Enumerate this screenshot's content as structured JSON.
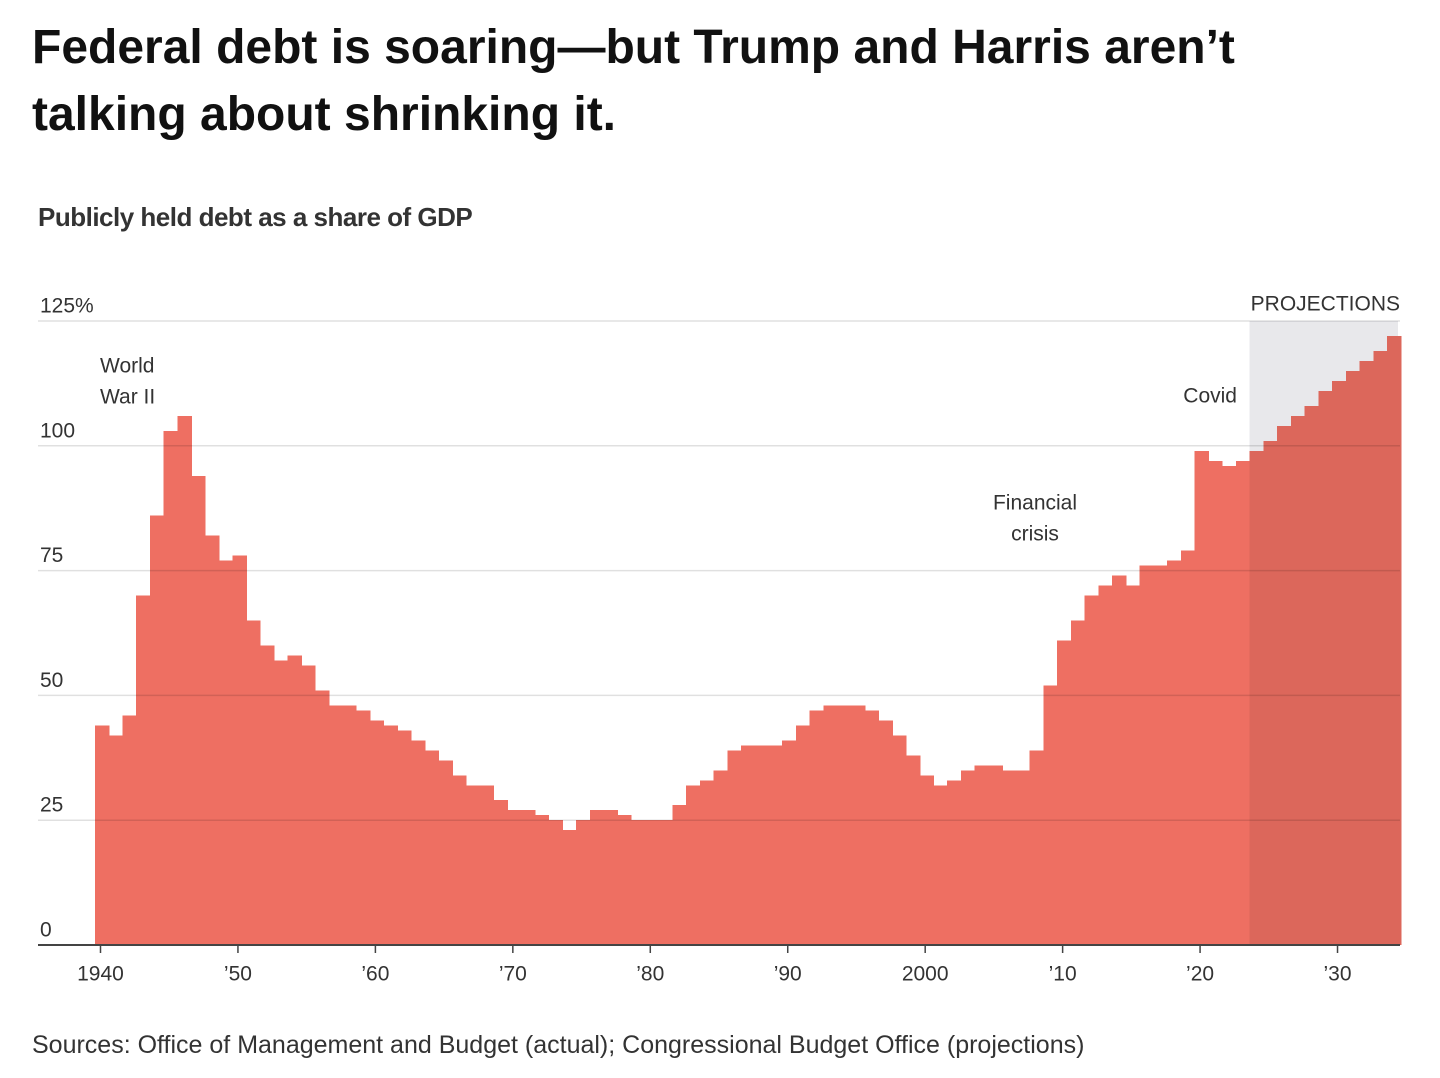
{
  "chart_data": {
    "type": "step-area",
    "title": "Federal debt is soaring—but Trump and Harris aren’t talking about shrinking it.",
    "subtitle": "Publicly held debt as a share of GDP",
    "source": "Sources: Office of Management and Budget (actual); Congressional Budget Office (projections)",
    "x": [
      1940,
      1941,
      1942,
      1943,
      1944,
      1945,
      1946,
      1947,
      1948,
      1949,
      1950,
      1951,
      1952,
      1953,
      1954,
      1955,
      1956,
      1957,
      1958,
      1959,
      1960,
      1961,
      1962,
      1963,
      1964,
      1965,
      1966,
      1967,
      1968,
      1969,
      1970,
      1971,
      1972,
      1973,
      1974,
      1975,
      1976,
      1977,
      1978,
      1979,
      1980,
      1981,
      1982,
      1983,
      1984,
      1985,
      1986,
      1987,
      1988,
      1989,
      1990,
      1991,
      1992,
      1993,
      1994,
      1995,
      1996,
      1997,
      1998,
      1999,
      2000,
      2001,
      2002,
      2003,
      2004,
      2005,
      2006,
      2007,
      2008,
      2009,
      2010,
      2011,
      2012,
      2013,
      2014,
      2015,
      2016,
      2017,
      2018,
      2019,
      2020,
      2021,
      2022,
      2023,
      2024,
      2025,
      2026,
      2027,
      2028,
      2029,
      2030,
      2031,
      2032,
      2033,
      2034
    ],
    "values": [
      44,
      42,
      46,
      70,
      86,
      103,
      106,
      94,
      82,
      77,
      78,
      65,
      60,
      57,
      58,
      56,
      51,
      48,
      48,
      47,
      45,
      44,
      43,
      41,
      39,
      37,
      34,
      32,
      32,
      29,
      27,
      27,
      26,
      25,
      23,
      25,
      27,
      27,
      26,
      25,
      25,
      25,
      28,
      32,
      33,
      35,
      39,
      40,
      40,
      40,
      41,
      44,
      47,
      48,
      48,
      48,
      47,
      45,
      42,
      38,
      34,
      32,
      33,
      35,
      36,
      36,
      35,
      35,
      39,
      52,
      61,
      65,
      70,
      72,
      74,
      72,
      76,
      76,
      77,
      79,
      99,
      97,
      96,
      97,
      99,
      101,
      104,
      106,
      108,
      111,
      113,
      115,
      117,
      119,
      122
    ],
    "color": "#ee6f62",
    "projection_color": "#dc675b",
    "projection_shade": "#e8e8eb",
    "projection_label": "PROJECTIONS",
    "projection_from": 2024,
    "xlim": [
      1939.6,
      2034.4
    ],
    "xticks": [
      {
        "value": 1940,
        "label": "1940"
      },
      {
        "value": 1950,
        "label": "’50"
      },
      {
        "value": 1960,
        "label": "’60"
      },
      {
        "value": 1970,
        "label": "’70"
      },
      {
        "value": 1980,
        "label": "’80"
      },
      {
        "value": 1990,
        "label": "’90"
      },
      {
        "value": 2000,
        "label": "2000"
      },
      {
        "value": 2010,
        "label": "’10"
      },
      {
        "value": 2020,
        "label": "’20"
      },
      {
        "value": 2030,
        "label": "’30"
      }
    ],
    "ylim": [
      0,
      125
    ],
    "yticks": [
      0,
      25,
      50,
      75,
      100,
      {
        "value": 125,
        "label": "125%"
      }
    ],
    "grid": true,
    "annotations": [
      [
        "World",
        "War II"
      ],
      [
        "Financial",
        "crisis"
      ],
      [
        "Covid"
      ]
    ]
  }
}
